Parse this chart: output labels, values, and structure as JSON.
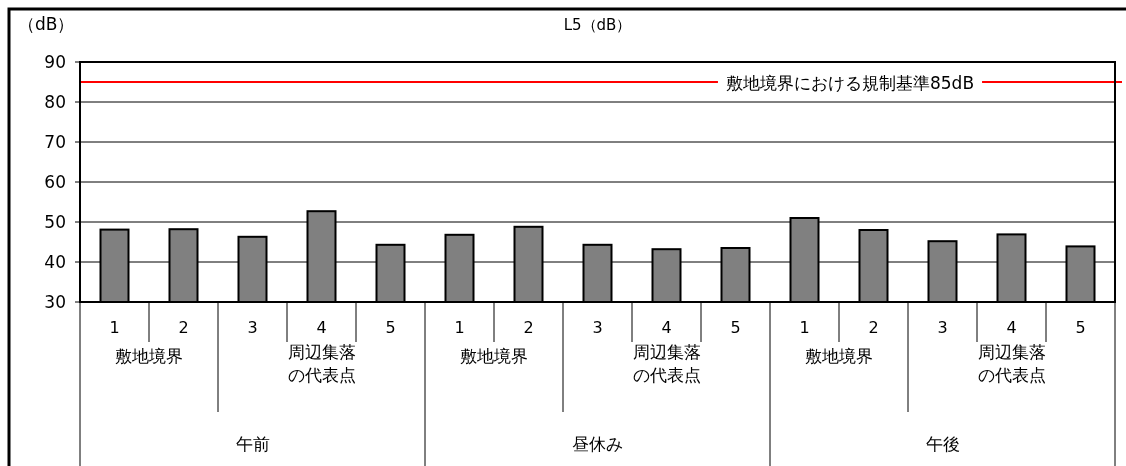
{
  "chart_data": {
    "type": "bar",
    "title": "L5（dB）",
    "ylabel": "（dB）",
    "categories": [
      "1",
      "2",
      "3",
      "4",
      "5",
      "1",
      "2",
      "3",
      "4",
      "5",
      "1",
      "2",
      "3",
      "4",
      "5"
    ],
    "values": [
      48.1,
      48.2,
      46.3,
      52.7,
      44.3,
      46.8,
      48.8,
      44.3,
      43.2,
      43.5,
      51,
      48,
      45.2,
      46.9,
      43.9
    ],
    "color": "#808080",
    "ylim": [
      30,
      90
    ],
    "yticks": [
      30,
      40,
      50,
      60,
      70,
      80,
      90
    ],
    "grid": "y",
    "ref_lines": [
      {
        "axis": "y",
        "value": 85,
        "label": "敷地境界における規制基準85dB",
        "color": "#ff0000"
      }
    ],
    "annotations": [
      "敷地境界",
      "周辺集落の代表点",
      "敷地境界",
      "周辺集落の代表点",
      "敷地境界",
      "周辺集落の代表点",
      "午前",
      "昼休み",
      "午後"
    ]
  }
}
